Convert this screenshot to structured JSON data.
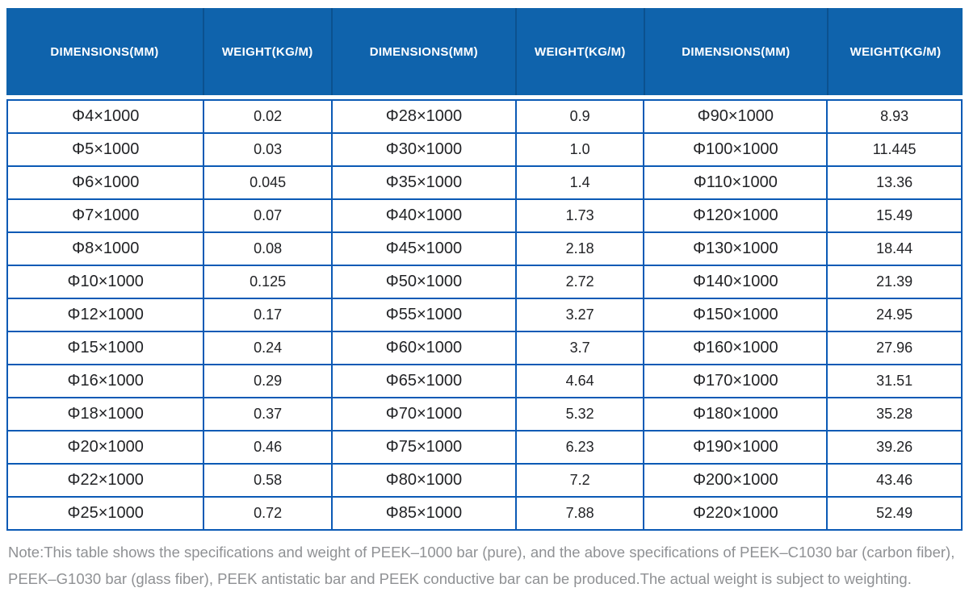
{
  "table": {
    "header": [
      "DIMENSIONS(MM)",
      "WEIGHT(KG/M)",
      "DIMENSIONS(MM)",
      "WEIGHT(KG/M)",
      "DIMENSIONS(MM)",
      "WEIGHT(KG/M)"
    ],
    "rows": [
      [
        "Φ4×1000",
        "0.02",
        "Φ28×1000",
        "0.9",
        "Φ90×1000",
        "8.93"
      ],
      [
        "Φ5×1000",
        "0.03",
        "Φ30×1000",
        "1.0",
        "Φ100×1000",
        "11.445"
      ],
      [
        "Φ6×1000",
        "0.045",
        "Φ35×1000",
        "1.4",
        "Φ110×1000",
        "13.36"
      ],
      [
        "Φ7×1000",
        "0.07",
        "Φ40×1000",
        "1.73",
        "Φ120×1000",
        "15.49"
      ],
      [
        "Φ8×1000",
        "0.08",
        "Φ45×1000",
        "2.18",
        "Φ130×1000",
        "18.44"
      ],
      [
        "Φ10×1000",
        "0.125",
        "Φ50×1000",
        "2.72",
        "Φ140×1000",
        "21.39"
      ],
      [
        "Φ12×1000",
        "0.17",
        "Φ55×1000",
        "3.27",
        "Φ150×1000",
        "24.95"
      ],
      [
        "Φ15×1000",
        "0.24",
        "Φ60×1000",
        "3.7",
        "Φ160×1000",
        "27.96"
      ],
      [
        "Φ16×1000",
        "0.29",
        "Φ65×1000",
        "4.64",
        "Φ170×1000",
        "31.51"
      ],
      [
        "Φ18×1000",
        "0.37",
        "Φ70×1000",
        "5.32",
        "Φ180×1000",
        "35.28"
      ],
      [
        "Φ20×1000",
        "0.46",
        "Φ75×1000",
        "6.23",
        "Φ190×1000",
        "39.26"
      ],
      [
        "Φ22×1000",
        "0.58",
        "Φ80×1000",
        "7.2",
        "Φ200×1000",
        "43.46"
      ],
      [
        "Φ25×1000",
        "0.72",
        "Φ85×1000",
        "7.88",
        "Φ220×1000",
        "52.49"
      ]
    ]
  },
  "note": "Note:This table shows the specifications and weight of PEEK–1000 bar (pure), and the above specifications of PEEK–C1030 bar (carbon fiber), PEEK–G1030 bar (glass fiber), PEEK antistatic bar and PEEK conductive bar can be produced.The actual weight is subject to weighting.",
  "colors": {
    "header_background": "#0f63ac",
    "header_separator": "#0b518f",
    "grid_border": "#0b5ab5",
    "body_text": "#222326",
    "note_text": "#8f9194"
  }
}
